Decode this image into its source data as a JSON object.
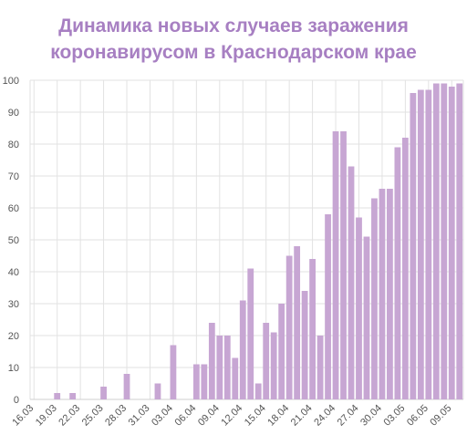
{
  "chart_data": {
    "type": "bar",
    "title_lines": [
      "Динамика новых случаев заражения",
      "коронавирусом в Краснодарском крае"
    ],
    "xlabel": "",
    "ylabel": "",
    "ylim": [
      0,
      100
    ],
    "yticks": [
      0,
      10,
      20,
      30,
      40,
      50,
      60,
      70,
      80,
      90,
      100
    ],
    "grid": true,
    "bar_color": "#c7a6d3",
    "categories": [
      "16.03",
      "17.03",
      "18.03",
      "19.03",
      "20.03",
      "21.03",
      "22.03",
      "23.03",
      "24.03",
      "25.03",
      "26.03",
      "27.03",
      "28.03",
      "29.03",
      "30.03",
      "31.03",
      "01.04",
      "02.04",
      "03.04",
      "04.04",
      "05.04",
      "06.04",
      "07.04",
      "08.04",
      "09.04",
      "10.04",
      "11.04",
      "12.04",
      "13.04",
      "14.04",
      "15.04",
      "16.04",
      "17.04",
      "18.04",
      "19.04",
      "20.04",
      "21.04",
      "22.04",
      "23.04",
      "24.04",
      "25.04",
      "26.04",
      "27.04",
      "28.04",
      "29.04",
      "30.04",
      "01.05",
      "02.05",
      "03.05",
      "04.05",
      "05.05",
      "06.05",
      "07.05",
      "08.05",
      "09.05",
      "10.05"
    ],
    "values": [
      0,
      0,
      0,
      2,
      0,
      2,
      0,
      0,
      0,
      4,
      0,
      0,
      8,
      0,
      0,
      0,
      5,
      0,
      17,
      0,
      0,
      11,
      11,
      24,
      20,
      20,
      13,
      31,
      41,
      5,
      24,
      21,
      30,
      45,
      48,
      34,
      44,
      20,
      58,
      84,
      84,
      73,
      57,
      51,
      63,
      66,
      66,
      79,
      82,
      96,
      97,
      97,
      99,
      99,
      98,
      99
    ],
    "x_tick_labels": [
      "16.03",
      "19.03",
      "22.03",
      "25.03",
      "28.03",
      "31.03",
      "03.04",
      "06.04",
      "09.04",
      "12.04",
      "15.04",
      "18.04",
      "21.04",
      "24.04",
      "27.04",
      "30.04",
      "03.05",
      "06.05",
      "09.05"
    ]
  }
}
